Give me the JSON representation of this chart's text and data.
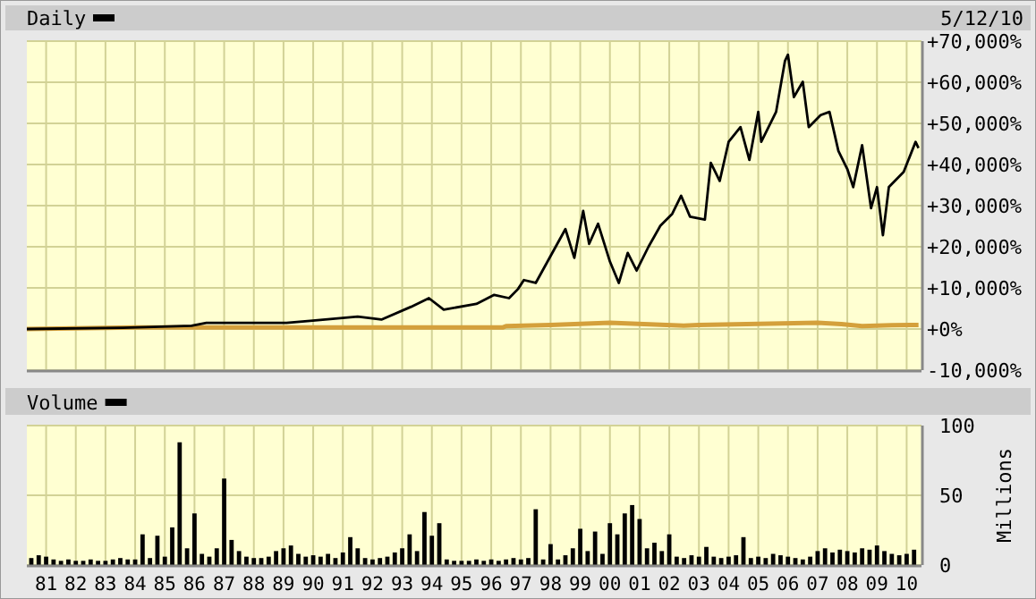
{
  "chart_data": [
    {
      "type": "line",
      "title": "Daily",
      "annotations": [
        "5/12/10"
      ],
      "series": [
        {
          "color": "#000000",
          "x": [
            1980.35,
            1983.6,
            1985.9,
            1986.4,
            1989.1,
            1989.9,
            1991.5,
            1992.3,
            1993.3,
            1993.9,
            1994.4,
            1995.5,
            1996.1,
            1996.6,
            1996.9,
            1997.1,
            1997.5,
            1998.5,
            1998.8,
            1999.1,
            1999.3,
            1999.6,
            2000.0,
            2000.3,
            2000.6,
            2000.9,
            2001.3,
            2001.7,
            2002.1,
            2002.4,
            2002.7,
            2003.2,
            2003.4,
            2003.7,
            2004.0,
            2004.4,
            2004.7,
            2005.0,
            2005.1,
            2005.6,
            2005.9,
            2006.0,
            2006.2,
            2006.5,
            2006.7,
            2007.1,
            2007.4,
            2007.7,
            2008.0,
            2008.2,
            2008.5,
            2008.8,
            2009.0,
            2009.2,
            2009.4,
            2009.9,
            2010.3,
            2010.4
          ],
          "values": [
            0,
            300,
            800,
            1500,
            1500,
            2000,
            3000,
            2300,
            5400,
            7500,
            4700,
            6100,
            8300,
            7500,
            9700,
            11900,
            11200,
            24300,
            17300,
            28700,
            20700,
            25600,
            16400,
            11200,
            18500,
            14200,
            20000,
            25100,
            28000,
            32400,
            27300,
            26600,
            40400,
            36000,
            45500,
            49100,
            41100,
            52800,
            45500,
            52800,
            65200,
            66700,
            56400,
            60100,
            49100,
            52000,
            52800,
            43300,
            38900,
            34500,
            44700,
            29400,
            34500,
            22800,
            34500,
            38200,
            45500,
            44000
          ]
        },
        {
          "color": "#d4a03c",
          "x": [
            1980.35,
            1984.0,
            1990.0,
            1996.4,
            1996.5,
            1998.0,
            2000.0,
            2002.5,
            2003.0,
            2007.0,
            2007.8,
            2008.5,
            2009.5,
            2010.4
          ],
          "values": [
            0,
            400,
            400,
            400,
            700,
            1000,
            1500,
            800,
            1000,
            1500,
            1200,
            700,
            900,
            1000
          ]
        }
      ],
      "xlim": [
        1980.35,
        2010.5
      ],
      "xticks": [
        {
          "value": 1981,
          "label": null
        },
        {
          "value": 1982,
          "label": null
        },
        {
          "value": 1983,
          "label": null
        },
        {
          "value": 1984,
          "label": null
        },
        {
          "value": 1985,
          "label": null
        },
        {
          "value": 1986,
          "label": null
        },
        {
          "value": 1987,
          "label": null
        },
        {
          "value": 1988,
          "label": null
        },
        {
          "value": 1989,
          "label": null
        },
        {
          "value": 1990,
          "label": null
        },
        {
          "value": 1991,
          "label": null
        },
        {
          "value": 1992,
          "label": null
        },
        {
          "value": 1993,
          "label": null
        },
        {
          "value": 1994,
          "label": null
        },
        {
          "value": 1995,
          "label": null
        },
        {
          "value": 1996,
          "label": null
        },
        {
          "value": 1997,
          "label": null
        },
        {
          "value": 1998,
          "label": null
        },
        {
          "value": 1999,
          "label": null
        },
        {
          "value": 2000,
          "label": null
        },
        {
          "value": 2001,
          "label": null
        },
        {
          "value": 2002,
          "label": null
        },
        {
          "value": 2003,
          "label": null
        },
        {
          "value": 2004,
          "label": null
        },
        {
          "value": 2005,
          "label": null
        },
        {
          "value": 2006,
          "label": null
        },
        {
          "value": 2007,
          "label": null
        },
        {
          "value": 2008,
          "label": null
        },
        {
          "value": 2009,
          "label": null
        },
        {
          "value": 2010,
          "label": null
        }
      ],
      "ylim": [
        -10000,
        70000
      ],
      "yticks": [
        {
          "value": -10000,
          "label": "-10,000%"
        },
        {
          "value": 0,
          "label": "+0%"
        },
        {
          "value": 10000,
          "label": "+10,000%"
        },
        {
          "value": 20000,
          "label": "+20,000%"
        },
        {
          "value": 30000,
          "label": "+30,000%"
        },
        {
          "value": 40000,
          "label": "+40,000%"
        },
        {
          "value": 50000,
          "label": "+50,000%"
        },
        {
          "value": 60000,
          "label": "+60,000%"
        },
        {
          "value": 70000,
          "label": "+70,000%"
        }
      ],
      "grid": true,
      "tick_labels": "y"
    },
    {
      "type": "bar",
      "title": "Volume",
      "ylabel": "Millions",
      "color": "#000000",
      "x": [
        1980.5,
        1980.75,
        1981,
        1981.25,
        1981.5,
        1981.75,
        1982,
        1982.25,
        1982.5,
        1982.75,
        1983,
        1983.25,
        1983.5,
        1983.75,
        1984,
        1984.25,
        1984.5,
        1984.75,
        1985,
        1985.25,
        1985.5,
        1985.75,
        1986,
        1986.25,
        1986.5,
        1986.75,
        1987,
        1987.25,
        1987.5,
        1987.75,
        1988,
        1988.25,
        1988.5,
        1988.75,
        1989,
        1989.25,
        1989.5,
        1989.75,
        1990,
        1990.25,
        1990.5,
        1990.75,
        1991,
        1991.25,
        1991.5,
        1991.75,
        1992,
        1992.25,
        1992.5,
        1992.75,
        1993,
        1993.25,
        1993.5,
        1993.75,
        1994,
        1994.25,
        1994.5,
        1994.75,
        1995,
        1995.25,
        1995.5,
        1995.75,
        1996,
        1996.25,
        1996.5,
        1996.75,
        1997,
        1997.25,
        1997.5,
        1997.75,
        1998,
        1998.25,
        1998.5,
        1998.75,
        1999,
        1999.25,
        1999.5,
        1999.75,
        2000,
        2000.25,
        2000.5,
        2000.75,
        2001,
        2001.25,
        2001.5,
        2001.75,
        2002,
        2002.25,
        2002.5,
        2002.75,
        2003,
        2003.25,
        2003.5,
        2003.75,
        2004,
        2004.25,
        2004.5,
        2004.75,
        2005,
        2005.25,
        2005.5,
        2005.75,
        2006,
        2006.25,
        2006.5,
        2006.75,
        2007,
        2007.25,
        2007.5,
        2007.75,
        2008,
        2008.25,
        2008.5,
        2008.75,
        2009,
        2009.25,
        2009.5,
        2009.75,
        2010,
        2010.25
      ],
      "values": [
        5,
        7,
        6,
        4,
        3,
        4,
        3,
        3,
        4,
        3,
        3,
        4,
        5,
        4,
        4,
        22,
        5,
        21,
        6,
        27,
        88,
        12,
        37,
        8,
        6,
        12,
        62,
        18,
        10,
        6,
        5,
        5,
        6,
        10,
        12,
        14,
        8,
        6,
        7,
        6,
        8,
        5,
        9,
        20,
        12,
        5,
        4,
        5,
        6,
        9,
        12,
        22,
        10,
        38,
        21,
        30,
        4,
        3,
        3,
        3,
        4,
        3,
        4,
        3,
        4,
        5,
        4,
        5,
        40,
        4,
        15,
        4,
        7,
        12,
        26,
        10,
        24,
        8,
        30,
        22,
        37,
        43,
        33,
        12,
        16,
        10,
        22,
        6,
        5,
        7,
        6,
        13,
        6,
        5,
        6,
        7,
        20,
        5,
        6,
        5,
        8,
        7,
        6,
        5,
        4,
        6,
        10,
        12,
        9,
        11,
        10,
        9,
        12,
        11,
        14,
        10,
        8,
        7,
        8,
        11
      ],
      "xlim": [
        1980.35,
        2010.5
      ],
      "xticks": [
        {
          "value": 1981,
          "label": "81"
        },
        {
          "value": 1982,
          "label": "82"
        },
        {
          "value": 1983,
          "label": "83"
        },
        {
          "value": 1984,
          "label": "84"
        },
        {
          "value": 1985,
          "label": "85"
        },
        {
          "value": 1986,
          "label": "86"
        },
        {
          "value": 1987,
          "label": "87"
        },
        {
          "value": 1988,
          "label": "88"
        },
        {
          "value": 1989,
          "label": "89"
        },
        {
          "value": 1990,
          "label": "90"
        },
        {
          "value": 1991,
          "label": "91"
        },
        {
          "value": 1992,
          "label": "92"
        },
        {
          "value": 1993,
          "label": "93"
        },
        {
          "value": 1994,
          "label": "94"
        },
        {
          "value": 1995,
          "label": "95"
        },
        {
          "value": 1996,
          "label": "96"
        },
        {
          "value": 1997,
          "label": "97"
        },
        {
          "value": 1998,
          "label": "98"
        },
        {
          "value": 1999,
          "label": "99"
        },
        {
          "value": 2000,
          "label": "00"
        },
        {
          "value": 2001,
          "label": "01"
        },
        {
          "value": 2002,
          "label": "02"
        },
        {
          "value": 2003,
          "label": "03"
        },
        {
          "value": 2004,
          "label": "04"
        },
        {
          "value": 2005,
          "label": "05"
        },
        {
          "value": 2006,
          "label": "06"
        },
        {
          "value": 2007,
          "label": "07"
        },
        {
          "value": 2008,
          "label": "08"
        },
        {
          "value": 2009,
          "label": "09"
        },
        {
          "value": 2010,
          "label": "10"
        }
      ],
      "ylim": [
        0,
        100
      ],
      "yticks": [
        0,
        50,
        100
      ],
      "grid": true
    }
  ]
}
